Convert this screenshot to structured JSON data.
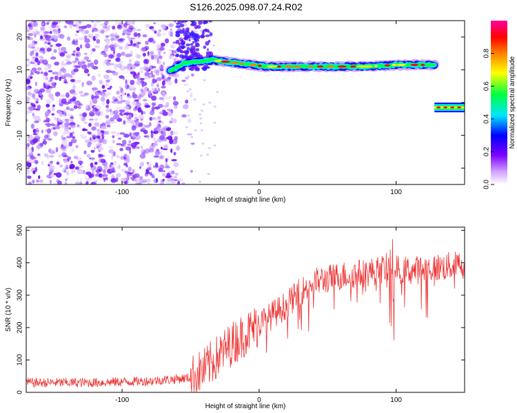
{
  "page": {
    "title": "S126.2025.098.07.24.R02"
  },
  "chart_data": [
    {
      "type": "heatmap",
      "title": "S126.2025.098.07.24.R02",
      "xlabel": "Height of straight line (km)",
      "ylabel": "Frequency (Hz)",
      "xlim": [
        -170,
        150
      ],
      "ylim": [
        -25,
        25
      ],
      "x_ticks": [
        -100,
        0,
        100
      ],
      "y_ticks": [
        -20,
        -10,
        0,
        10,
        20
      ],
      "grid": false,
      "colorbar": {
        "label": "Normalized spectral amplitude",
        "range": [
          0,
          1
        ],
        "ticks": [
          "0.0",
          "0.2",
          "0.4",
          "0.6",
          "0.8"
        ],
        "colormap": [
          "#ffffff",
          "#7a00ff",
          "#0000ff",
          "#00e5ff",
          "#00ff40",
          "#ffff00",
          "#ff8000",
          "#ff0000",
          "#ff00a0"
        ]
      },
      "features": {
        "noise_region_km": [
          -170,
          -60
        ],
        "noise_color": "#7a1fff",
        "main_band": {
          "x": [
            -65,
            -55,
            -45,
            -35,
            -25,
            -15,
            -5,
            5,
            20,
            40,
            60,
            80,
            100,
            128
          ],
          "y": [
            9.5,
            12,
            12.5,
            13,
            12.5,
            12,
            11.5,
            11,
            11,
            11,
            11,
            11,
            11.5,
            11.5
          ]
        },
        "secondary_band": {
          "x": [
            128,
            150
          ],
          "y": [
            -1.5,
            -1.5
          ]
        }
      }
    },
    {
      "type": "line",
      "xlabel": "Height of straight line (km)",
      "ylabel": "SNR (10 * v/v)",
      "xlim": [
        -170,
        150
      ],
      "ylim": [
        0,
        510
      ],
      "x_ticks": [
        -100,
        0,
        100
      ],
      "y_ticks": [
        0,
        100,
        200,
        300,
        400,
        500
      ],
      "grid": false,
      "line_color": "#ee3333",
      "envelope": {
        "x": [
          -170,
          -120,
          -80,
          -50,
          -40,
          -30,
          -20,
          -10,
          0,
          10,
          20,
          30,
          40,
          50,
          60,
          80,
          90,
          95,
          98,
          100,
          110,
          120,
          130,
          140,
          150
        ],
        "y": [
          30,
          30,
          35,
          45,
          70,
          110,
          150,
          180,
          210,
          240,
          270,
          310,
          340,
          350,
          360,
          370,
          380,
          390,
          300,
          380,
          375,
          380,
          385,
          390,
          395
        ]
      }
    }
  ]
}
